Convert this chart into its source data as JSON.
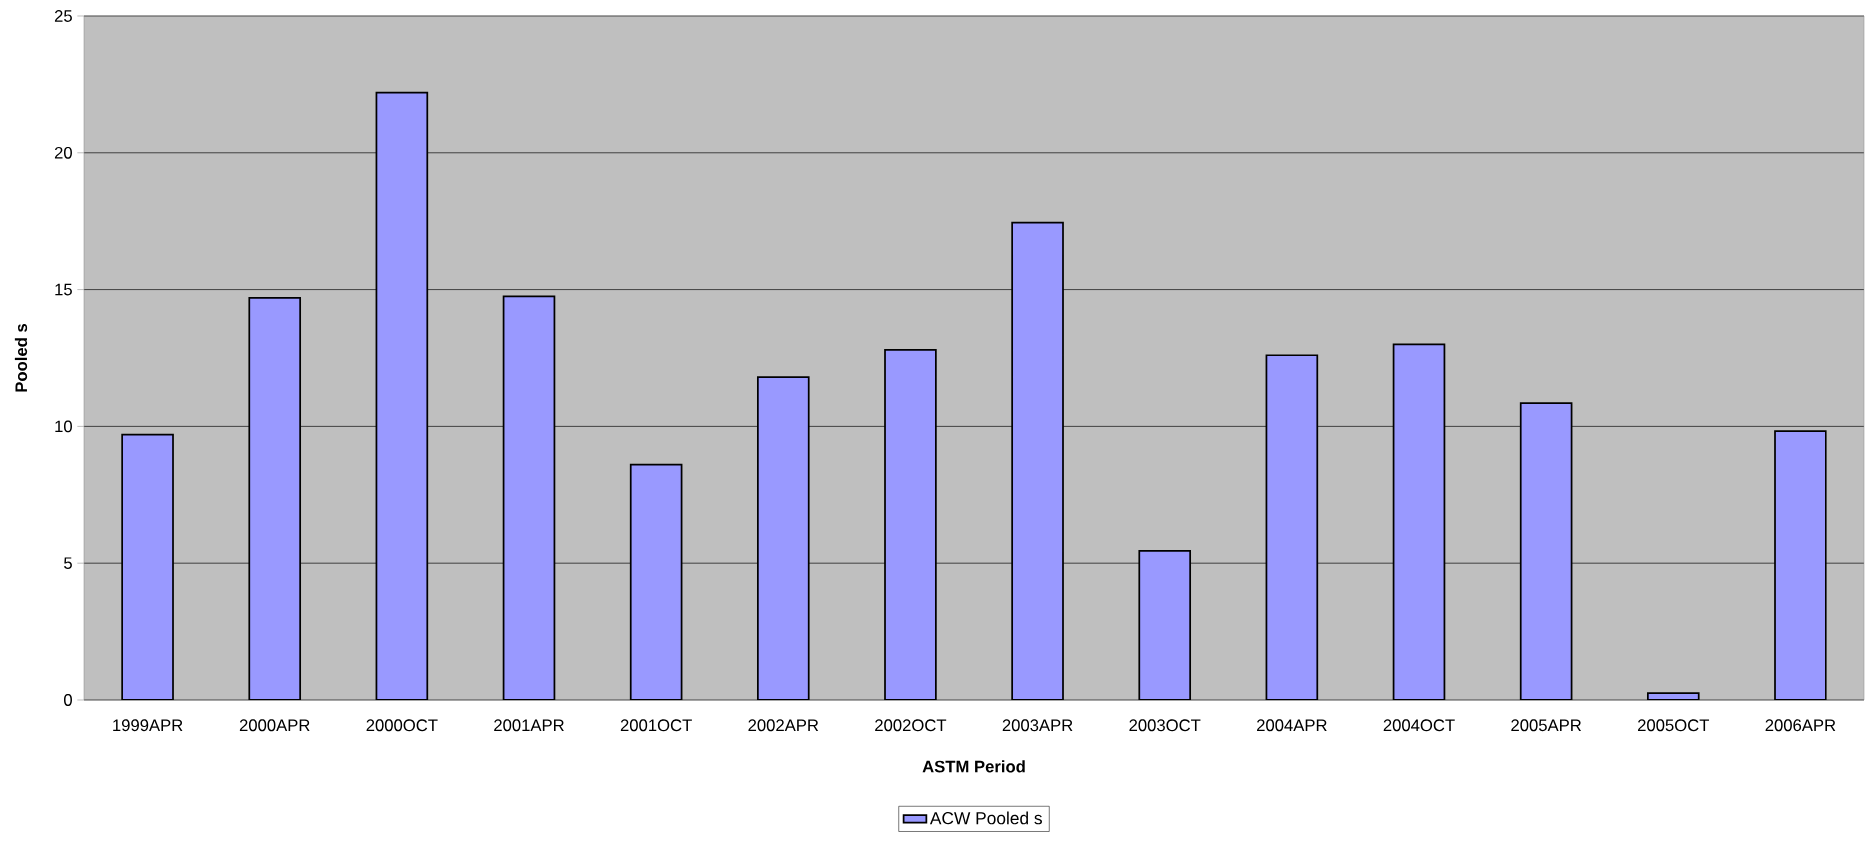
{
  "chart_data": {
    "type": "bar",
    "xlabel": "ASTM Period",
    "ylabel": "Pooled s",
    "categories": [
      "1999APR",
      "2000APR",
      "2000OCT",
      "2001APR",
      "2001OCT",
      "2002APR",
      "2002OCT",
      "2003APR",
      "2003OCT",
      "2004APR",
      "2004OCT",
      "2005APR",
      "2005OCT",
      "2006APR"
    ],
    "series": [
      {
        "name": "ACW Pooled s",
        "color": "#9999ff",
        "values": [
          9.7,
          14.7,
          22.2,
          14.75,
          8.6,
          11.8,
          12.8,
          17.45,
          5.45,
          12.6,
          13.0,
          10.85,
          0.25,
          9.83
        ]
      }
    ],
    "ylim": [
      0,
      25
    ],
    "yticks": [
      0,
      5,
      10,
      15,
      20,
      25
    ],
    "grid": "y",
    "legend": "bottom"
  }
}
